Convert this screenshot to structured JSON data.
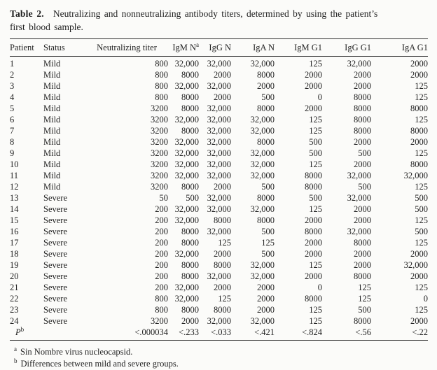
{
  "title": {
    "label": "Table 2.",
    "line1": "Neutralizing and nonneutralizing antibody titers, determined by using the patient’s",
    "line2": "first blood sample."
  },
  "table": {
    "columns": [
      {
        "label": "Patient"
      },
      {
        "label": "Status"
      },
      {
        "label": "Neutralizing titer"
      },
      {
        "label": "IgM N",
        "sup": "a"
      },
      {
        "label": "IgG N"
      },
      {
        "label": "IgA N"
      },
      {
        "label": "IgM G1"
      },
      {
        "label": "IgG G1"
      },
      {
        "label": "IgA G1"
      }
    ],
    "rows": [
      [
        "1",
        "Mild",
        "800",
        "32,000",
        "32,000",
        "32,000",
        "125",
        "32,000",
        "2000"
      ],
      [
        "2",
        "Mild",
        "800",
        "8000",
        "2000",
        "8000",
        "2000",
        "2000",
        "2000"
      ],
      [
        "3",
        "Mild",
        "800",
        "32,000",
        "32,000",
        "2000",
        "2000",
        "2000",
        "125"
      ],
      [
        "4",
        "Mild",
        "800",
        "8000",
        "2000",
        "500",
        "0",
        "8000",
        "125"
      ],
      [
        "5",
        "Mild",
        "3200",
        "8000",
        "32,000",
        "8000",
        "2000",
        "8000",
        "8000"
      ],
      [
        "6",
        "Mild",
        "3200",
        "32,000",
        "32,000",
        "32,000",
        "125",
        "8000",
        "125"
      ],
      [
        "7",
        "Mild",
        "3200",
        "8000",
        "32,000",
        "32,000",
        "125",
        "8000",
        "8000"
      ],
      [
        "8",
        "Mild",
        "3200",
        "32,000",
        "32,000",
        "8000",
        "500",
        "2000",
        "2000"
      ],
      [
        "9",
        "Mild",
        "3200",
        "32,000",
        "32,000",
        "32,000",
        "500",
        "500",
        "125"
      ],
      [
        "10",
        "Mild",
        "3200",
        "32,000",
        "32,000",
        "32,000",
        "125",
        "2000",
        "8000"
      ],
      [
        "11",
        "Mild",
        "3200",
        "32,000",
        "32,000",
        "32,000",
        "8000",
        "32,000",
        "32,000"
      ],
      [
        "12",
        "Mild",
        "3200",
        "8000",
        "2000",
        "500",
        "8000",
        "500",
        "125"
      ],
      [
        "13",
        "Severe",
        "50",
        "500",
        "32,000",
        "8000",
        "500",
        "32,000",
        "500"
      ],
      [
        "14",
        "Severe",
        "200",
        "32,000",
        "32,000",
        "32,000",
        "125",
        "2000",
        "500"
      ],
      [
        "15",
        "Severe",
        "200",
        "32,000",
        "8000",
        "8000",
        "2000",
        "2000",
        "125"
      ],
      [
        "16",
        "Severe",
        "200",
        "8000",
        "32,000",
        "500",
        "8000",
        "32,000",
        "500"
      ],
      [
        "17",
        "Severe",
        "200",
        "8000",
        "125",
        "125",
        "2000",
        "8000",
        "125"
      ],
      [
        "18",
        "Severe",
        "200",
        "32,000",
        "2000",
        "500",
        "2000",
        "2000",
        "2000"
      ],
      [
        "19",
        "Severe",
        "200",
        "8000",
        "8000",
        "32,000",
        "125",
        "2000",
        "32,000"
      ],
      [
        "20",
        "Severe",
        "200",
        "8000",
        "32,000",
        "32,000",
        "2000",
        "8000",
        "2000"
      ],
      [
        "21",
        "Severe",
        "200",
        "32,000",
        "2000",
        "2000",
        "0",
        "125",
        "125"
      ],
      [
        "22",
        "Severe",
        "800",
        "32,000",
        "125",
        "2000",
        "8000",
        "125",
        "0"
      ],
      [
        "23",
        "Severe",
        "800",
        "8000",
        "8000",
        "2000",
        "125",
        "500",
        "125"
      ],
      [
        "24",
        "Severe",
        "3200",
        "2000",
        "32,000",
        "32,000",
        "125",
        "8000",
        "2000"
      ]
    ],
    "p_row": {
      "label": "P",
      "sup": "b",
      "values": [
        "<.000034",
        "<.233",
        "<.033",
        "<.421",
        "<.824",
        "<.56",
        "<.22"
      ]
    }
  },
  "footnotes": [
    {
      "sup": "a",
      "text": "Sin Nombre virus nucleocapsid."
    },
    {
      "sup": "b",
      "text": "Differences between mild and severe groups."
    }
  ]
}
